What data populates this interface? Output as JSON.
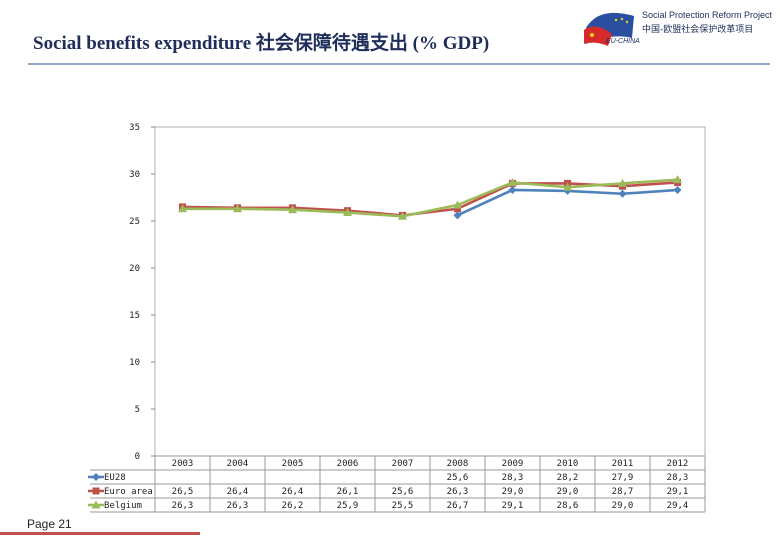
{
  "slide": {
    "title": "Social benefits expenditure  社会保障待遇支出 (% GDP)",
    "page_label": "Page 21"
  },
  "logo": {
    "name_en": "Social Protection Reform Project",
    "name_cn": "中国-欧盟社会保护改革项目",
    "tag": "EU-CHINA"
  },
  "chart_data": {
    "type": "line",
    "title": "",
    "xlabel": "",
    "ylabel": "",
    "ylim": [
      0,
      35
    ],
    "yticks": [
      0,
      5,
      10,
      15,
      20,
      25,
      30,
      35
    ],
    "grid": false,
    "legend": "table-left",
    "categories": [
      "2003",
      "2004",
      "2005",
      "2006",
      "2007",
      "2008",
      "2009",
      "2010",
      "2011",
      "2012"
    ],
    "series": [
      {
        "name": "EU28",
        "color": "#4f81bd",
        "marker": "diamond",
        "values": [
          null,
          null,
          null,
          null,
          null,
          25.6,
          28.3,
          28.2,
          27.9,
          28.3
        ],
        "labels": [
          "",
          "",
          "",
          "",
          "",
          "25,6",
          "28,3",
          "28,2",
          "27,9",
          "28,3"
        ]
      },
      {
        "name": "Euro area",
        "color": "#c0504d",
        "marker": "square",
        "values": [
          26.5,
          26.4,
          26.4,
          26.1,
          25.6,
          26.3,
          29.0,
          29.0,
          28.7,
          29.1
        ],
        "labels": [
          "26,5",
          "26,4",
          "26,4",
          "26,1",
          "25,6",
          "26,3",
          "29,0",
          "29,0",
          "28,7",
          "29,1"
        ]
      },
      {
        "name": "Belgium",
        "color": "#9bbb59",
        "marker": "triangle",
        "values": [
          26.3,
          26.3,
          26.2,
          25.9,
          25.5,
          26.7,
          29.1,
          28.6,
          29.0,
          29.4
        ],
        "labels": [
          "26,3",
          "26,3",
          "26,2",
          "25,9",
          "25,5",
          "26,7",
          "29,1",
          "28,6",
          "29,0",
          "29,4"
        ]
      }
    ]
  }
}
